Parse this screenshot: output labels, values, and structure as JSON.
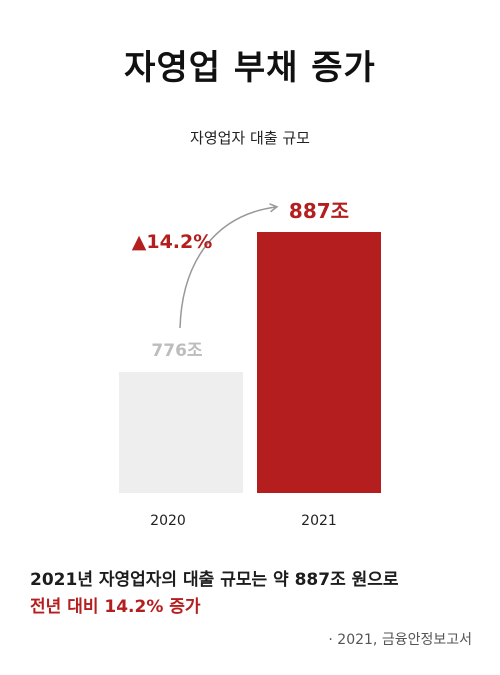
{
  "title": "자영업 부채 증가",
  "chart_data": {
    "type": "bar",
    "title": "자영업자 대출 규모",
    "categories": [
      "2020",
      "2021"
    ],
    "values": [
      776,
      887
    ],
    "value_labels": [
      "776조",
      "887조"
    ],
    "growth_label": "▲14.2%",
    "colors": [
      "#eeeeee",
      "#b41e1e"
    ],
    "value_label_colors": [
      "#bdbdbd",
      "#b41e1e"
    ],
    "ylim": [
      680,
      900
    ]
  },
  "summary": {
    "line1": "2021년 자영업자의 대출 규모는 약 887조 원으로",
    "line2": "전년 대비 14.2% 증가"
  },
  "source": "· 2021, 금융안정보고서"
}
